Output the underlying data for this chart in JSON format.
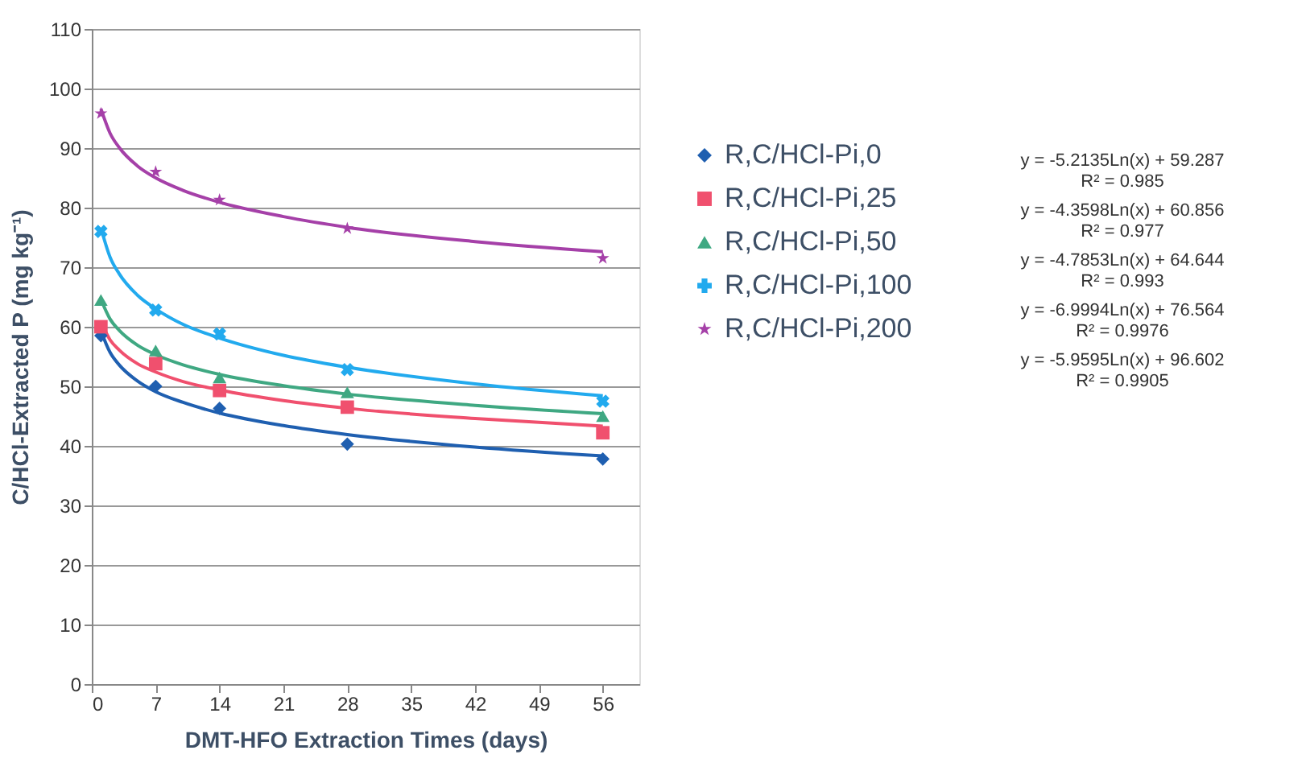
{
  "chart_data": {
    "type": "scatter",
    "xlabel": "DMT-HFO Extraction Times (days)",
    "ylabel": "C/HCl-Extracted P (mg kg⁻¹)",
    "x": [
      1,
      7,
      14,
      28,
      56
    ],
    "xlim": [
      0,
      60
    ],
    "xticks": [
      0,
      7,
      14,
      21,
      28,
      35,
      42,
      49,
      56
    ],
    "ylim": [
      0,
      110
    ],
    "yticks": [
      0,
      10,
      20,
      30,
      40,
      50,
      60,
      70,
      80,
      90,
      100,
      110
    ],
    "grid": "y",
    "legend": "right",
    "series": [
      {
        "name": "R,C/HCl-Pi,0",
        "color": "#1f5fb0",
        "marker": "diamond",
        "values": [
          58.5,
          50,
          46.3,
          40.3,
          37.8
        ]
      },
      {
        "name": "R,C/HCl-Pi,25",
        "color": "#f0506e",
        "marker": "square",
        "values": [
          60,
          53.8,
          49.3,
          46.5,
          42.2
        ]
      },
      {
        "name": "R,C/HCl-Pi,50",
        "color": "#3fa882",
        "marker": "triangle",
        "values": [
          64.5,
          56,
          51.5,
          49,
          45
        ]
      },
      {
        "name": "R,C/HCl-Pi,100",
        "color": "#22aaee",
        "marker": "cross",
        "values": [
          76,
          62.8,
          58.8,
          52.8,
          47.5
        ]
      },
      {
        "name": "R,C/HCl-Pi,200",
        "color": "#a540a8",
        "marker": "star",
        "values": [
          95.8,
          86,
          81.3,
          76.5,
          71.5
        ]
      },
      {
        "type": "line",
        "color": "#1f5fb0",
        "x": [
          1,
          2,
          3,
          5,
          7,
          10,
          14,
          21,
          28,
          42,
          56
        ],
        "values": [
          59.3,
          55.7,
          53.6,
          50.9,
          49.1,
          47.3,
          45.5,
          43.4,
          41.9,
          39.8,
          38.3
        ]
      },
      {
        "type": "line",
        "color": "#f0506e",
        "x": [
          1,
          2,
          3,
          5,
          7,
          10,
          14,
          21,
          28,
          42,
          56
        ],
        "values": [
          60.9,
          57.8,
          56.1,
          53.8,
          52.4,
          50.8,
          49.4,
          47.6,
          46.3,
          44.6,
          43.3
        ]
      },
      {
        "type": "line",
        "color": "#3fa882",
        "x": [
          1,
          2,
          3,
          5,
          7,
          10,
          14,
          21,
          28,
          42,
          56
        ],
        "values": [
          64.6,
          61.3,
          59.4,
          56.9,
          55.3,
          53.6,
          52.0,
          50.1,
          48.7,
          46.8,
          45.4
        ]
      },
      {
        "type": "line",
        "color": "#22aaee",
        "x": [
          1,
          2,
          3,
          5,
          7,
          10,
          14,
          21,
          28,
          42,
          56
        ],
        "values": [
          76.6,
          71.7,
          68.9,
          65.3,
          63.0,
          60.4,
          58.1,
          55.2,
          53.2,
          50.4,
          48.4
        ]
      },
      {
        "type": "line",
        "color": "#a540a8",
        "x": [
          1,
          2,
          3,
          5,
          7,
          10,
          14,
          21,
          28,
          42,
          56
        ],
        "values": [
          96.6,
          92.5,
          90.1,
          87.0,
          85.0,
          82.9,
          80.9,
          78.5,
          76.7,
          74.3,
          72.6
        ]
      }
    ],
    "annotations": [
      "y = -5.2135Ln(x) + 59.287",
      "R² = 0.985",
      "y = -4.3598Ln(x) + 60.856",
      "R² = 0.977",
      "y = -4.7853Ln(x) + 64.644",
      "R² = 0.993",
      "y = -6.9994Ln(x) + 76.564",
      "R² = 0.9976",
      "y = -5.9595Ln(x) + 96.602",
      "R² = 0.9905"
    ]
  }
}
